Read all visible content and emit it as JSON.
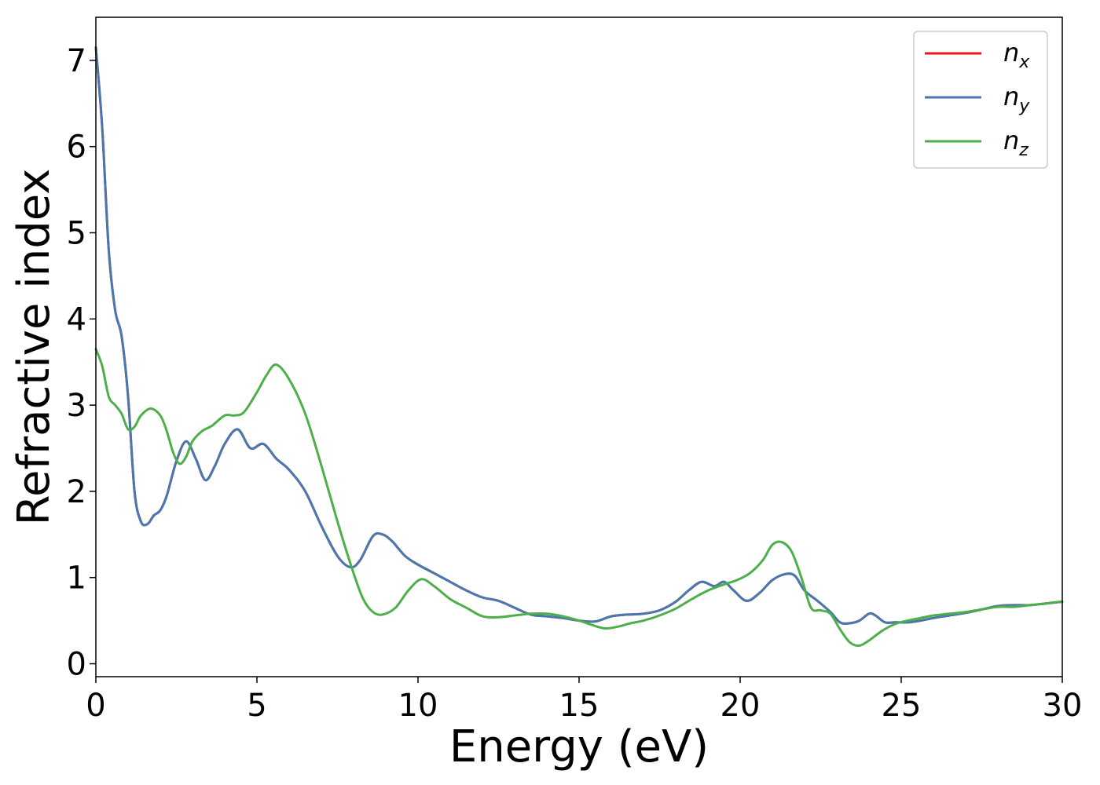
{
  "chart_data": {
    "type": "line",
    "title": "",
    "xlabel": "Energy (eV)",
    "ylabel": "Refractive index",
    "xlim": [
      0,
      30
    ],
    "ylim": [
      -0.15,
      7.5
    ],
    "xticks": [
      0,
      5,
      10,
      15,
      20,
      25,
      30
    ],
    "yticks": [
      0,
      1,
      2,
      3,
      4,
      5,
      6,
      7
    ],
    "grid": false,
    "legend_position": "top-right",
    "series": [
      {
        "name": "n_x",
        "legend_base": "n",
        "legend_sub": "x",
        "color": "#e41a1c",
        "x": [
          0,
          0.2,
          0.4,
          0.6,
          0.8,
          1.0,
          1.2,
          1.4,
          1.6,
          1.8,
          2.0,
          2.2,
          2.5,
          2.8,
          3.1,
          3.4,
          3.7,
          4.0,
          4.4,
          4.8,
          5.2,
          5.6,
          6.0,
          6.5,
          7.0,
          7.5,
          7.9,
          8.2,
          8.6,
          8.9,
          9.2,
          9.6,
          10.0,
          10.5,
          11.0,
          11.5,
          12.0,
          12.5,
          13.0,
          13.5,
          14.0,
          14.5,
          15.0,
          15.5,
          16.0,
          16.5,
          17.0,
          17.5,
          18.0,
          18.4,
          18.8,
          19.2,
          19.5,
          19.8,
          20.2,
          20.6,
          21.0,
          21.4,
          21.7,
          22.0,
          22.4,
          22.8,
          23.1,
          23.4,
          23.7,
          24.0,
          24.2,
          24.5,
          24.8,
          25.2,
          25.6,
          26.0,
          26.5,
          27.0,
          27.5,
          28.0,
          28.5,
          29.0,
          29.5,
          30.0
        ],
        "y": [
          7.15,
          6.2,
          4.8,
          4.1,
          3.8,
          3.1,
          2.0,
          1.65,
          1.62,
          1.72,
          1.78,
          1.95,
          2.35,
          2.58,
          2.38,
          2.13,
          2.3,
          2.55,
          2.72,
          2.5,
          2.55,
          2.38,
          2.25,
          2.0,
          1.6,
          1.25,
          1.12,
          1.2,
          1.48,
          1.5,
          1.42,
          1.25,
          1.15,
          1.05,
          0.95,
          0.85,
          0.77,
          0.73,
          0.65,
          0.57,
          0.55,
          0.53,
          0.5,
          0.49,
          0.55,
          0.57,
          0.58,
          0.62,
          0.72,
          0.85,
          0.95,
          0.9,
          0.95,
          0.85,
          0.73,
          0.82,
          0.97,
          1.04,
          1.02,
          0.85,
          0.73,
          0.6,
          0.48,
          0.47,
          0.5,
          0.58,
          0.56,
          0.48,
          0.48,
          0.48,
          0.5,
          0.53,
          0.56,
          0.59,
          0.63,
          0.67,
          0.68,
          0.68,
          0.7,
          0.72
        ]
      },
      {
        "name": "n_y",
        "legend_base": "n",
        "legend_sub": "y",
        "color": "#4878b0",
        "x": [
          0,
          0.2,
          0.4,
          0.6,
          0.8,
          1.0,
          1.2,
          1.4,
          1.6,
          1.8,
          2.0,
          2.2,
          2.5,
          2.8,
          3.1,
          3.4,
          3.7,
          4.0,
          4.4,
          4.8,
          5.2,
          5.6,
          6.0,
          6.5,
          7.0,
          7.5,
          7.9,
          8.2,
          8.6,
          8.9,
          9.2,
          9.6,
          10.0,
          10.5,
          11.0,
          11.5,
          12.0,
          12.5,
          13.0,
          13.5,
          14.0,
          14.5,
          15.0,
          15.5,
          16.0,
          16.5,
          17.0,
          17.5,
          18.0,
          18.4,
          18.8,
          19.2,
          19.5,
          19.8,
          20.2,
          20.6,
          21.0,
          21.4,
          21.7,
          22.0,
          22.4,
          22.8,
          23.1,
          23.4,
          23.7,
          24.0,
          24.2,
          24.5,
          24.8,
          25.2,
          25.6,
          26.0,
          26.5,
          27.0,
          27.5,
          28.0,
          28.5,
          29.0,
          29.5,
          30.0
        ],
        "y": [
          7.15,
          6.2,
          4.8,
          4.1,
          3.8,
          3.1,
          2.0,
          1.65,
          1.62,
          1.72,
          1.78,
          1.95,
          2.35,
          2.58,
          2.38,
          2.13,
          2.3,
          2.55,
          2.72,
          2.5,
          2.55,
          2.38,
          2.25,
          2.0,
          1.6,
          1.25,
          1.12,
          1.2,
          1.48,
          1.5,
          1.42,
          1.25,
          1.15,
          1.05,
          0.95,
          0.85,
          0.77,
          0.73,
          0.65,
          0.57,
          0.55,
          0.53,
          0.5,
          0.49,
          0.55,
          0.57,
          0.58,
          0.62,
          0.72,
          0.85,
          0.95,
          0.9,
          0.95,
          0.85,
          0.73,
          0.82,
          0.97,
          1.04,
          1.02,
          0.85,
          0.73,
          0.6,
          0.48,
          0.47,
          0.5,
          0.58,
          0.56,
          0.48,
          0.48,
          0.48,
          0.5,
          0.53,
          0.56,
          0.59,
          0.63,
          0.67,
          0.68,
          0.68,
          0.7,
          0.72
        ]
      },
      {
        "name": "n_z",
        "legend_base": "n",
        "legend_sub": "z",
        "color": "#4daf4a",
        "x": [
          0,
          0.2,
          0.4,
          0.6,
          0.8,
          1.0,
          1.2,
          1.4,
          1.7,
          2.0,
          2.2,
          2.4,
          2.6,
          2.8,
          3.0,
          3.3,
          3.6,
          4.0,
          4.3,
          4.6,
          5.0,
          5.3,
          5.6,
          6.0,
          6.5,
          7.0,
          7.5,
          8.0,
          8.3,
          8.6,
          8.9,
          9.3,
          9.7,
          10.1,
          10.5,
          11.0,
          11.5,
          12.0,
          12.5,
          13.0,
          13.5,
          14.0,
          14.5,
          15.0,
          15.4,
          15.8,
          16.2,
          16.6,
          17.0,
          17.5,
          18.0,
          18.5,
          19.0,
          19.5,
          19.9,
          20.3,
          20.7,
          21.0,
          21.3,
          21.6,
          21.9,
          22.2,
          22.5,
          22.8,
          23.1,
          23.4,
          23.7,
          24.0,
          24.4,
          24.8,
          25.2,
          25.6,
          26.0,
          26.5,
          27.0,
          27.5,
          28.0,
          28.5,
          29.0,
          29.5,
          30.0
        ],
        "y": [
          3.65,
          3.45,
          3.1,
          3.0,
          2.9,
          2.72,
          2.75,
          2.88,
          2.96,
          2.88,
          2.7,
          2.45,
          2.32,
          2.4,
          2.58,
          2.7,
          2.76,
          2.88,
          2.88,
          2.92,
          3.15,
          3.35,
          3.47,
          3.3,
          2.9,
          2.3,
          1.65,
          1.05,
          0.75,
          0.6,
          0.57,
          0.65,
          0.85,
          0.98,
          0.9,
          0.75,
          0.65,
          0.55,
          0.54,
          0.56,
          0.58,
          0.58,
          0.55,
          0.5,
          0.45,
          0.41,
          0.43,
          0.47,
          0.5,
          0.56,
          0.64,
          0.75,
          0.85,
          0.92,
          0.97,
          1.05,
          1.2,
          1.38,
          1.41,
          1.3,
          1.0,
          0.65,
          0.62,
          0.58,
          0.4,
          0.25,
          0.21,
          0.27,
          0.38,
          0.46,
          0.5,
          0.53,
          0.56,
          0.58,
          0.6,
          0.63,
          0.66,
          0.66,
          0.68,
          0.7,
          0.72
        ]
      }
    ]
  }
}
